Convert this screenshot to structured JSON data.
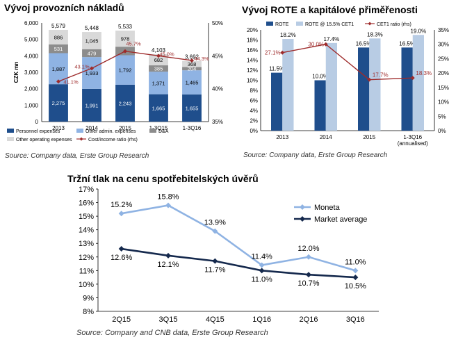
{
  "chart_data": [
    {
      "type": "bar",
      "title": "Vývoj provozních nákladů",
      "ylabel": "CZK mn",
      "ylim": [
        0,
        6000
      ],
      "yticks": [
        "0",
        "1,000",
        "2,000",
        "3,000",
        "4,000",
        "5,000",
        "6,000"
      ],
      "y2lim": [
        35,
        50
      ],
      "y2ticks": [
        "35%",
        "40%",
        "45%",
        "50%"
      ],
      "categories": [
        "2013",
        "2014",
        "2015",
        "1-3Q15",
        "1-3Q16"
      ],
      "stacked": true,
      "totals": [
        "5,579",
        "5,448",
        "5,533",
        "4,103",
        "3,692"
      ],
      "series": [
        {
          "name": "Personnel expenses",
          "color": "#1f4e8c",
          "values": [
            2275,
            1991,
            2243,
            1665,
            1655
          ],
          "labels": [
            "2,275",
            "1,991",
            "2,243",
            "1,665",
            "1,655"
          ]
        },
        {
          "name": "Other admin. expenses",
          "color": "#8fb3e3",
          "values": [
            1887,
            1933,
            1792,
            1371,
            1465
          ],
          "labels": [
            "1,887",
            "1,933",
            "1,792",
            "1,371",
            "1,465"
          ]
        },
        {
          "name": "D&A",
          "color": "#8c8c8c",
          "values": [
            531,
            479,
            520,
            385,
            204
          ],
          "labels": [
            "531",
            "479",
            "",
            "385",
            "204"
          ]
        },
        {
          "name": "Other operating expenses",
          "color": "#d9d9d9",
          "values": [
            886,
            1045,
            978,
            682,
            368
          ],
          "labels": [
            "886",
            "1,045",
            "978",
            "682",
            "368"
          ]
        }
      ],
      "line": {
        "name": "Cost/income ratio (rhs)",
        "color": "#9e2b2b",
        "values": [
          41.1,
          43.1,
          45.7,
          45.0,
          44.3
        ],
        "labels": [
          "41.1%",
          "43.1%",
          "45.7%",
          "45.0%",
          "44.3%"
        ]
      },
      "legend_position": "bottom",
      "source": "Source: Company data, Erste Group Research"
    },
    {
      "type": "bar",
      "title": "Vývoj ROTE a kapitálové přiměřenosti",
      "ylim": [
        0,
        20
      ],
      "yticks": [
        "0%",
        "2%",
        "4%",
        "6%",
        "8%",
        "10%",
        "12%",
        "14%",
        "16%",
        "18%",
        "20%"
      ],
      "y2lim": [
        0,
        35
      ],
      "y2ticks": [
        "0%",
        "5%",
        "10%",
        "15%",
        "20%",
        "25%",
        "30%",
        "35%"
      ],
      "categories": [
        "2013",
        "2014",
        "2015",
        "1-3Q16"
      ],
      "category_sublabel": "(annualised)",
      "series": [
        {
          "name": "ROTE",
          "color": "#1f4e8c",
          "values": [
            11.5,
            10.0,
            16.5,
            16.5
          ],
          "labels": [
            "11.5%",
            "10.0%",
            "16.5%",
            "16.5%"
          ]
        },
        {
          "name": "ROTE @ 15.5% CET1",
          "color": "#b8cce4",
          "values": [
            18.2,
            17.4,
            18.3,
            19.0
          ],
          "labels": [
            "18.2%",
            "17.4%",
            "18.3%",
            "19.0%"
          ]
        }
      ],
      "line": {
        "name": "CET1 ratio (rhs)",
        "color": "#9e2b2b",
        "values": [
          27.1,
          30.0,
          17.7,
          18.3
        ],
        "labels": [
          "27.1%",
          "30.0%",
          "17.7%",
          "18.3%"
        ]
      },
      "legend_position": "top",
      "source": "Source: Company data, Erste Group Research"
    },
    {
      "type": "line",
      "title": "Tržní tlak na cenu spotřebitelských úvěrů",
      "ylim": [
        8,
        17
      ],
      "yticks": [
        "8%",
        "9%",
        "10%",
        "11%",
        "12%",
        "13%",
        "14%",
        "15%",
        "16%",
        "17%"
      ],
      "categories": [
        "2Q15",
        "3Q15",
        "4Q15",
        "1Q16",
        "2Q16",
        "3Q16"
      ],
      "series": [
        {
          "name": "Moneta",
          "color": "#8fb3e3",
          "values": [
            15.2,
            15.8,
            13.9,
            11.4,
            12.0,
            11.0
          ],
          "labels": [
            "15.2%",
            "15.8%",
            "13.9%",
            "11.4%",
            "12.0%",
            "11.0%"
          ]
        },
        {
          "name": "Market average",
          "color": "#15294d",
          "values": [
            12.6,
            12.1,
            11.7,
            11.0,
            10.7,
            10.5
          ],
          "labels": [
            "12.6%",
            "12.1%",
            "11.7%",
            "11.0%",
            "10.7%",
            "10.5%"
          ]
        }
      ],
      "legend_position": "top-right",
      "source": "Source: Company and CNB data, Erste Group Research"
    }
  ]
}
